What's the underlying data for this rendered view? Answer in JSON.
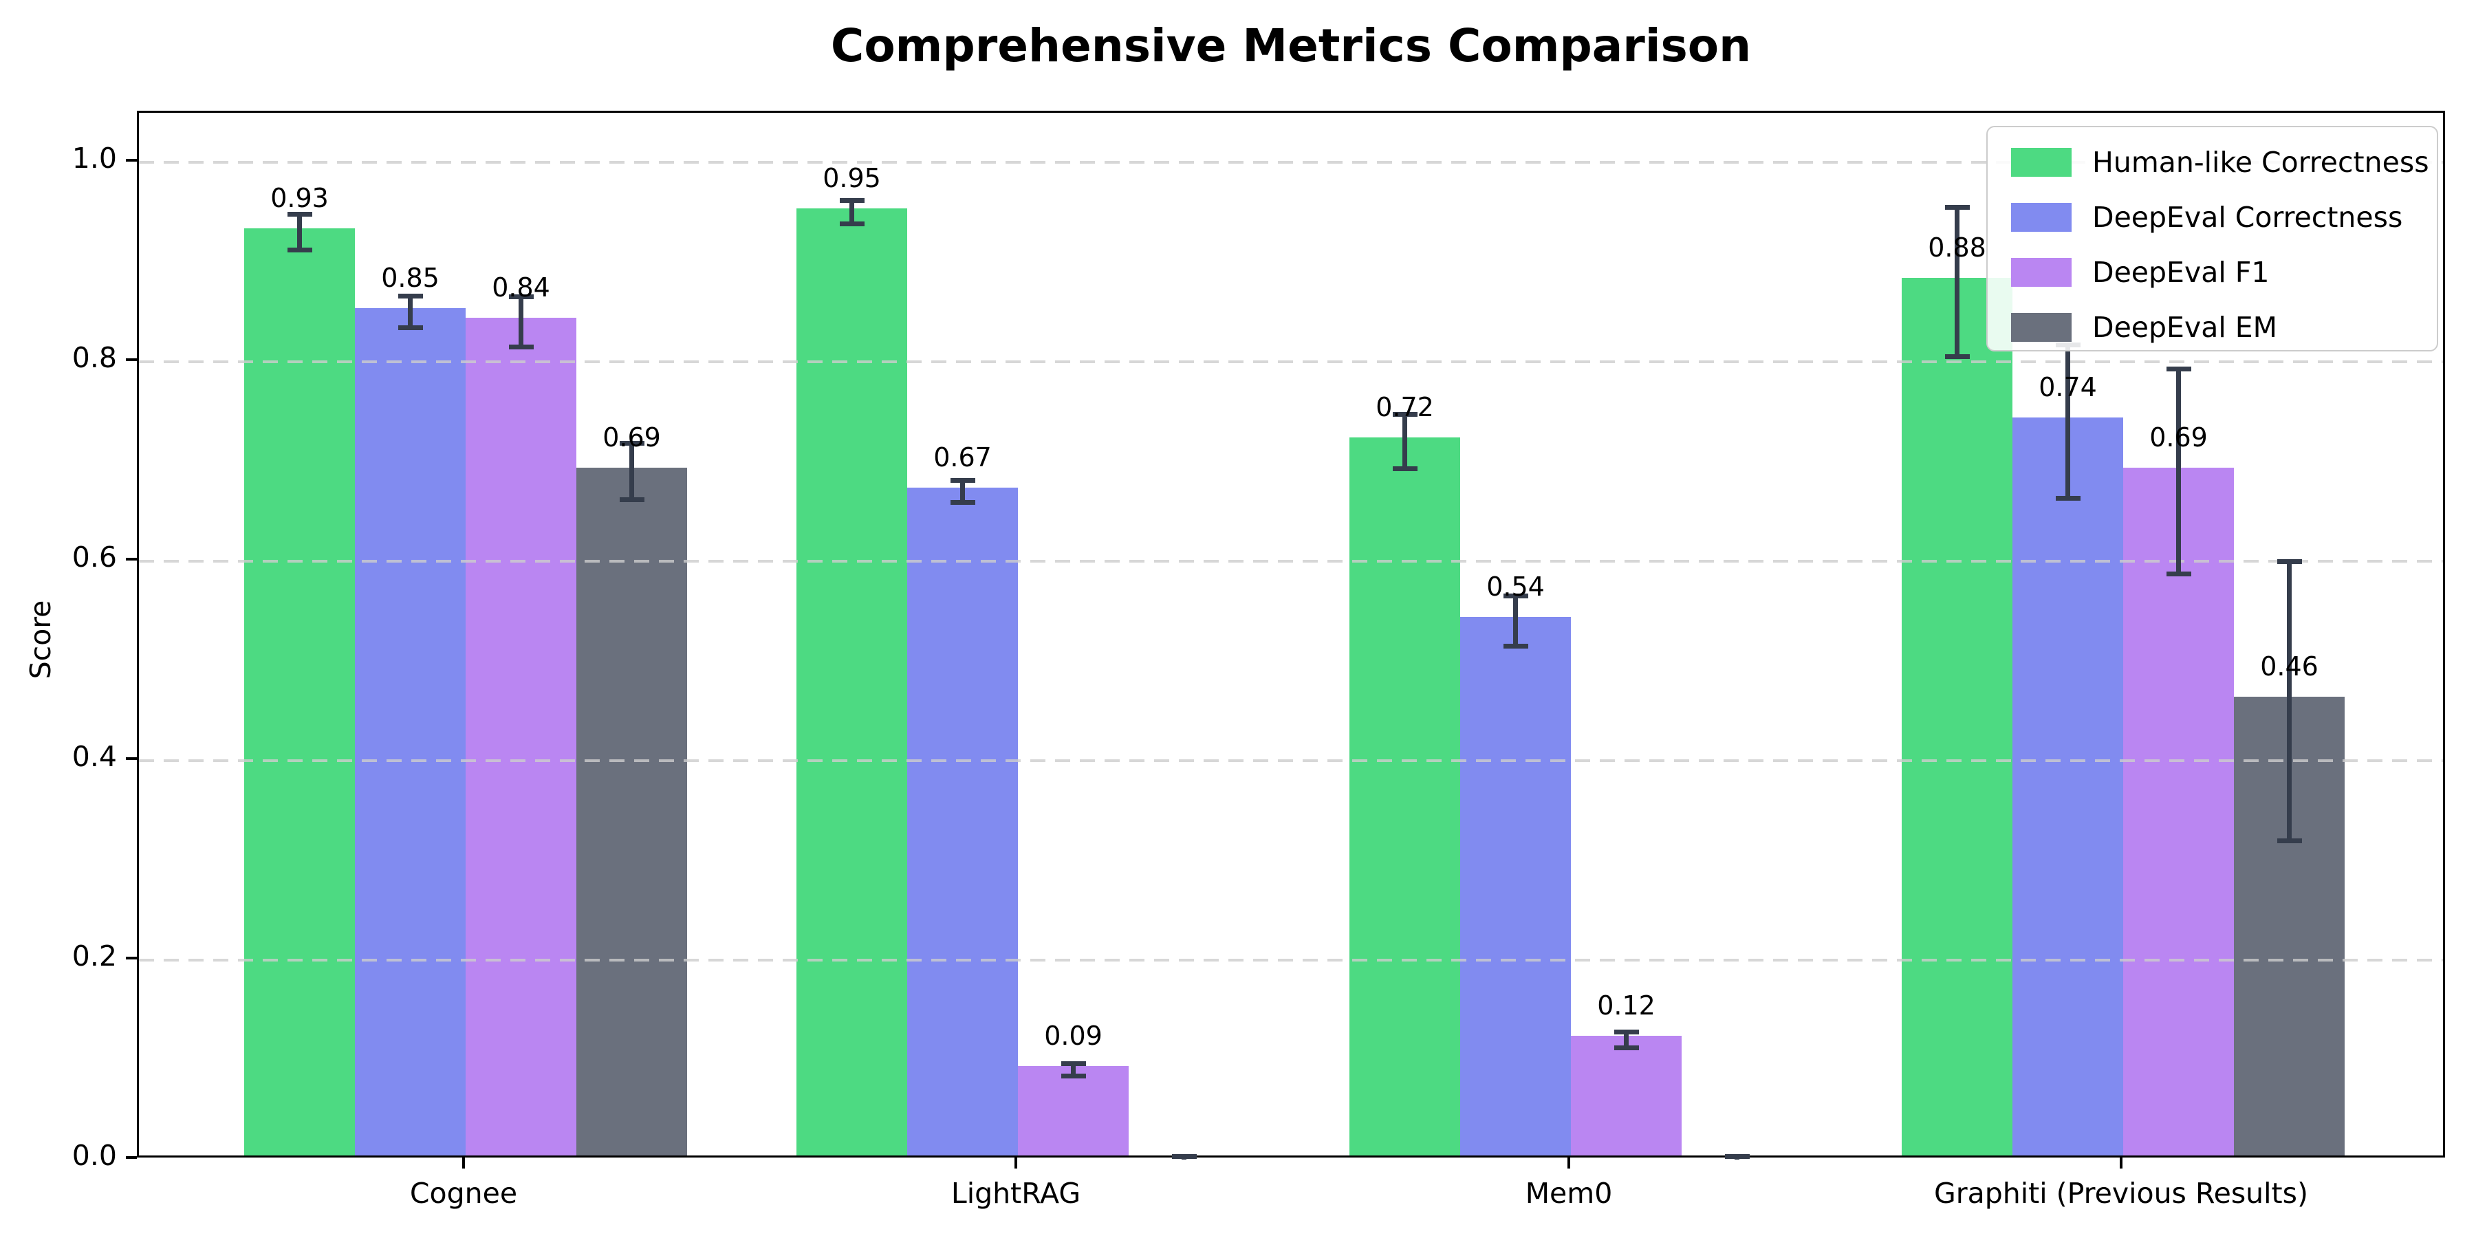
{
  "chart_data": {
    "type": "bar",
    "title": "Comprehensive Metrics Comparison",
    "xlabel": "",
    "ylabel": "Score",
    "ylim": [
      0.0,
      1.05
    ],
    "grid": "horizontal dashed",
    "legend_position": "upper right",
    "categories": [
      "Cognee",
      "LightRAG",
      "Mem0",
      "Graphiti (Previous Results)"
    ],
    "y_ticks": [
      "0.0",
      "0.2",
      "0.4",
      "0.6",
      "0.8",
      "1.0"
    ],
    "error_bar_color": "#353d4c",
    "series": [
      {
        "name": "Human-like Correctness",
        "color": "#4dda82",
        "values": [
          0.93,
          0.95,
          0.72,
          0.88
        ],
        "errors": [
          0.018,
          0.012,
          0.027,
          0.075
        ],
        "labels": [
          "0.93",
          "0.95",
          "0.72",
          "0.88"
        ]
      },
      {
        "name": "DeepEval Correctness",
        "color": "#818bf0",
        "values": [
          0.85,
          0.67,
          0.54,
          0.74
        ],
        "errors": [
          0.016,
          0.011,
          0.025,
          0.077
        ],
        "labels": [
          "0.85",
          "0.67",
          "0.54",
          "0.74"
        ]
      },
      {
        "name": "DeepEval F1",
        "color": "#ba86f2",
        "values": [
          0.84,
          0.09,
          0.12,
          0.69
        ],
        "errors": [
          0.025,
          0.006,
          0.008,
          0.103
        ],
        "labels": [
          "0.84",
          "0.09",
          "0.12",
          "0.69"
        ]
      },
      {
        "name": "DeepEval EM",
        "color": "#6a707d",
        "values": [
          0.69,
          0.0,
          0.0,
          0.46
        ],
        "errors": [
          0.028,
          0.003,
          0.003,
          0.14
        ],
        "labels": [
          "0.69",
          null,
          null,
          "0.46"
        ]
      }
    ]
  }
}
